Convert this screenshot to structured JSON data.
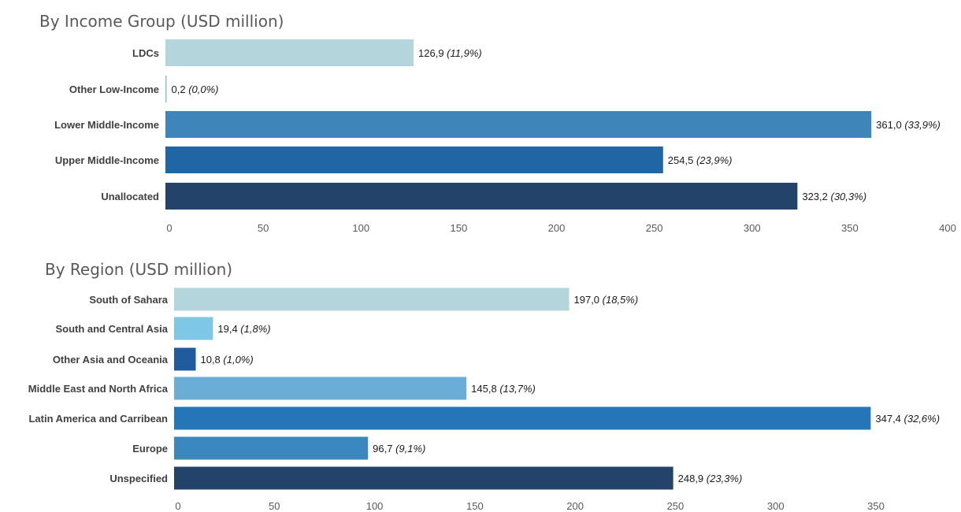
{
  "chart_data": [
    {
      "type": "bar",
      "orientation": "horizontal",
      "title": "By Income Group (USD million)",
      "categories": [
        "LDCs",
        "Other Low-Income",
        "Lower Middle-Income",
        "Upper Middle-Income",
        "Unallocated"
      ],
      "values": [
        126.9,
        0.2,
        361.0,
        254.5,
        323.2
      ],
      "value_labels": [
        "126,9",
        "0,2",
        "361,0",
        "254,5",
        "323,2"
      ],
      "pct_labels": [
        "(11,9%)",
        "(0,0%)",
        "(33,9%)",
        "(23,9%)",
        "(30,3%)"
      ],
      "colors": [
        "#b4d5db",
        "#7fc3e0",
        "#3e86b9",
        "#1f66a4",
        "#24436b"
      ],
      "xlim": [
        0,
        400
      ],
      "ticks": [
        "0",
        "50",
        "100",
        "150",
        "200",
        "250",
        "300",
        "350",
        "400"
      ],
      "grid": false
    },
    {
      "type": "bar",
      "orientation": "horizontal",
      "title": "By Region (USD million)",
      "categories": [
        "South of Sahara",
        "South and Central Asia",
        "Other Asia and Oceania",
        "Middle East and North Africa",
        "Latin America and Carribean",
        "Europe",
        "Unspecified"
      ],
      "values": [
        197.0,
        19.4,
        10.8,
        145.8,
        347.4,
        96.7,
        248.9
      ],
      "value_labels": [
        "197,0",
        "19,4",
        "10,8",
        "145,8",
        "347,4",
        "96,7",
        "248,9"
      ],
      "pct_labels": [
        "(18,5%)",
        "(1,8%)",
        "(1,0%)",
        "(13,7%)",
        "(32,6%)",
        "(9,1%)",
        "(23,3%)"
      ],
      "colors": [
        "#b4d5db",
        "#7fc7e6",
        "#1f5b9e",
        "#6aadd6",
        "#2576b8",
        "#3a88bd",
        "#24436b"
      ],
      "xlim": [
        0,
        350
      ],
      "ticks": [
        "0",
        "50",
        "100",
        "150",
        "200",
        "250",
        "300",
        "350"
      ],
      "grid": false
    }
  ]
}
